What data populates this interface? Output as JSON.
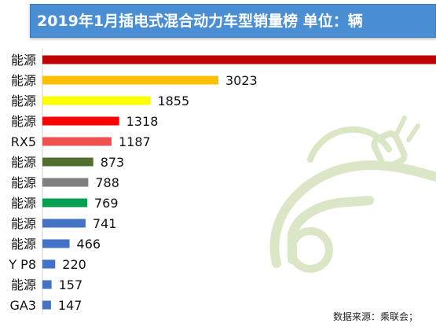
{
  "title": "2019年1月插电式混合动力车型销量榜   单位：辆",
  "source": "数据来源：乘联会；",
  "chart_data": {
    "type": "bar",
    "orientation": "horizontal",
    "title": "2019年1月插电式混合动力车型销量榜",
    "unit": "单位：辆",
    "categories": [
      "能源",
      "能源",
      "能源",
      "能源",
      "RX5",
      "能源",
      "能源",
      "能源",
      "能源",
      "能源",
      "Y P8",
      "能源",
      "GA3"
    ],
    "values": [
      null,
      3023,
      1855,
      1318,
      1187,
      873,
      788,
      769,
      741,
      466,
      220,
      157,
      147
    ],
    "colors": [
      "#c00000",
      "#ffc000",
      "#ffff00",
      "#ff0000",
      "#f05050",
      "#507030",
      "#7f7f7f",
      "#00a050",
      "#4472c4",
      "#4472c4",
      "#4472c4",
      "#4472c4",
      "#4472c4"
    ],
    "xlim": [
      0,
      4500
    ],
    "grid": false,
    "legend": "none"
  }
}
